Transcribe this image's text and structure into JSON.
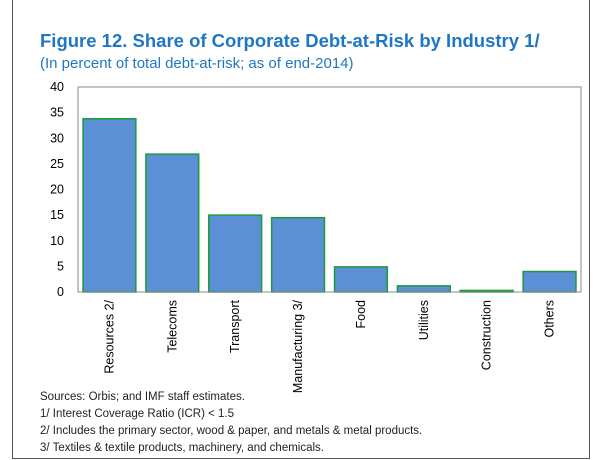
{
  "title": "Figure 12. Share of Corporate Debt-at-Risk by Industry 1/",
  "subtitle": "(In percent of total debt-at-risk; as of end-2014)",
  "chart_data": {
    "type": "bar",
    "categories": [
      "Resources 2/",
      "Telecoms",
      "Transport",
      "Manufacturing 3/",
      "Food",
      "Utilities",
      "Construction",
      "Others"
    ],
    "values": [
      33.8,
      26.9,
      15.0,
      14.5,
      4.9,
      1.2,
      0.3,
      4.0
    ],
    "ylim": [
      0,
      40
    ],
    "yticks": [
      0,
      5,
      10,
      15,
      20,
      25,
      30,
      35,
      40
    ],
    "grid": false,
    "bar_color": "#5b8fd6",
    "bar_edge_color": "#1a9b3a"
  },
  "notes": [
    "Sources: Orbis; and IMF staff estimates.",
    "1/ Interest Coverage Ratio (ICR) < 1.5",
    "2/ Includes the primary sector, wood & paper, and metals & metal products.",
    "3/ Textiles & textile products, machinery, and chemicals."
  ]
}
